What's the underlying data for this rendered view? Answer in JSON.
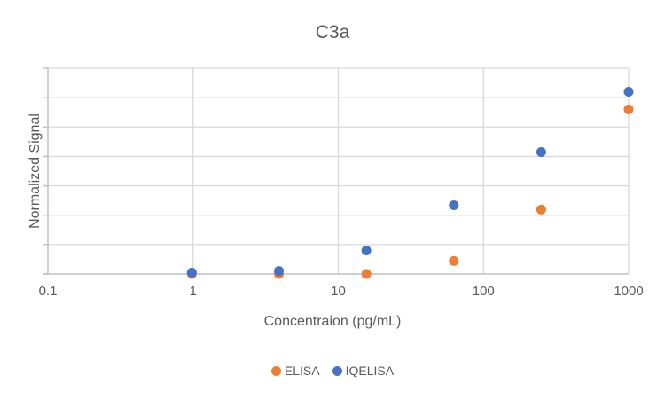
{
  "chart_data": {
    "type": "scatter",
    "title": "C3a",
    "xlabel": "Concentraion (pg/mL)",
    "ylabel": "Normalized Signal",
    "x_scale": "log",
    "xlim": [
      0.1,
      1000
    ],
    "x_ticks": [
      "0.1",
      "1",
      "10",
      "100",
      "1000"
    ],
    "ylim": [
      0,
      7
    ],
    "y_ticks_labeled": false,
    "grid": true,
    "legend_position": "bottom",
    "x": [
      0.98,
      3.9,
      15.6,
      62.5,
      250,
      1000
    ],
    "series": [
      {
        "name": "ELISA",
        "color": "#ED7D31",
        "values": [
          0.0,
          0.0,
          0.0,
          0.44,
          2.19,
          5.6
        ]
      },
      {
        "name": "IQELISA",
        "color": "#4472C4",
        "values": [
          0.05,
          0.1,
          0.8,
          2.34,
          4.15,
          6.2
        ]
      }
    ]
  },
  "legend": [
    {
      "label": "ELISA",
      "color": "#ED7D31"
    },
    {
      "label": "IQELISA",
      "color": "#4472C4"
    }
  ]
}
